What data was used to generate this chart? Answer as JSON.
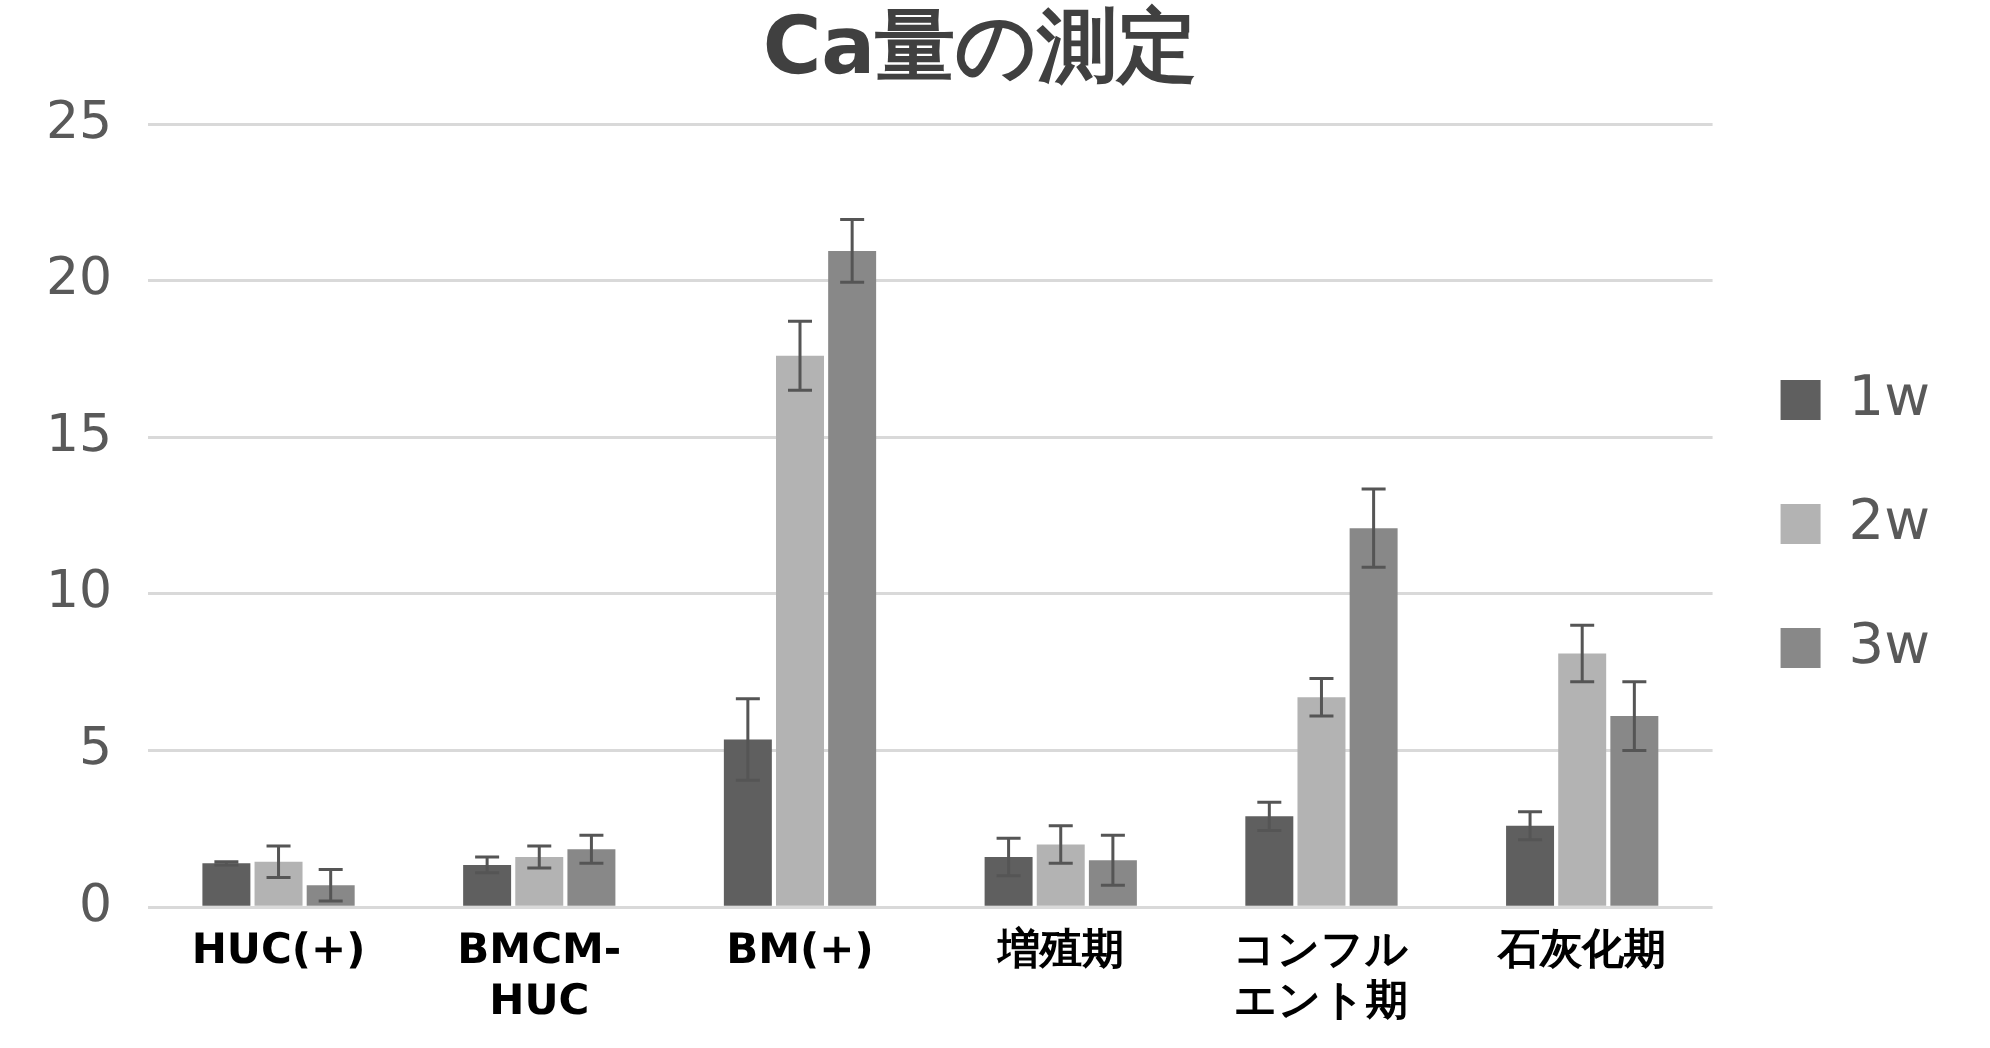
{
  "chart_data": {
    "type": "bar",
    "title": "Ca量の測定",
    "categories": [
      "HUC(+)",
      "BMCM-HUC",
      "BM(+)",
      "増殖期",
      "コンフルエント期",
      "石灰化期"
    ],
    "series": [
      {
        "name": "1w",
        "color": "#5f5f5f",
        "values": [
          1.4,
          1.35,
          5.35,
          1.6,
          2.9,
          2.6
        ],
        "errors": [
          0.05,
          0.25,
          1.3,
          0.6,
          0.45,
          0.45
        ]
      },
      {
        "name": "2w",
        "color": "#b3b3b3",
        "values": [
          1.45,
          1.6,
          17.6,
          2.0,
          6.7,
          8.1
        ],
        "errors": [
          0.5,
          0.35,
          1.1,
          0.6,
          0.6,
          0.9
        ]
      },
      {
        "name": "3w",
        "color": "#888888",
        "values": [
          0.7,
          1.85,
          20.95,
          1.5,
          12.1,
          6.1
        ],
        "errors": [
          0.5,
          0.45,
          1.0,
          0.8,
          1.25,
          1.1
        ]
      }
    ],
    "ylim": [
      0,
      25
    ],
    "yticks": [
      0,
      5,
      10,
      15,
      20,
      25
    ],
    "grid": "y",
    "legend": "right"
  }
}
